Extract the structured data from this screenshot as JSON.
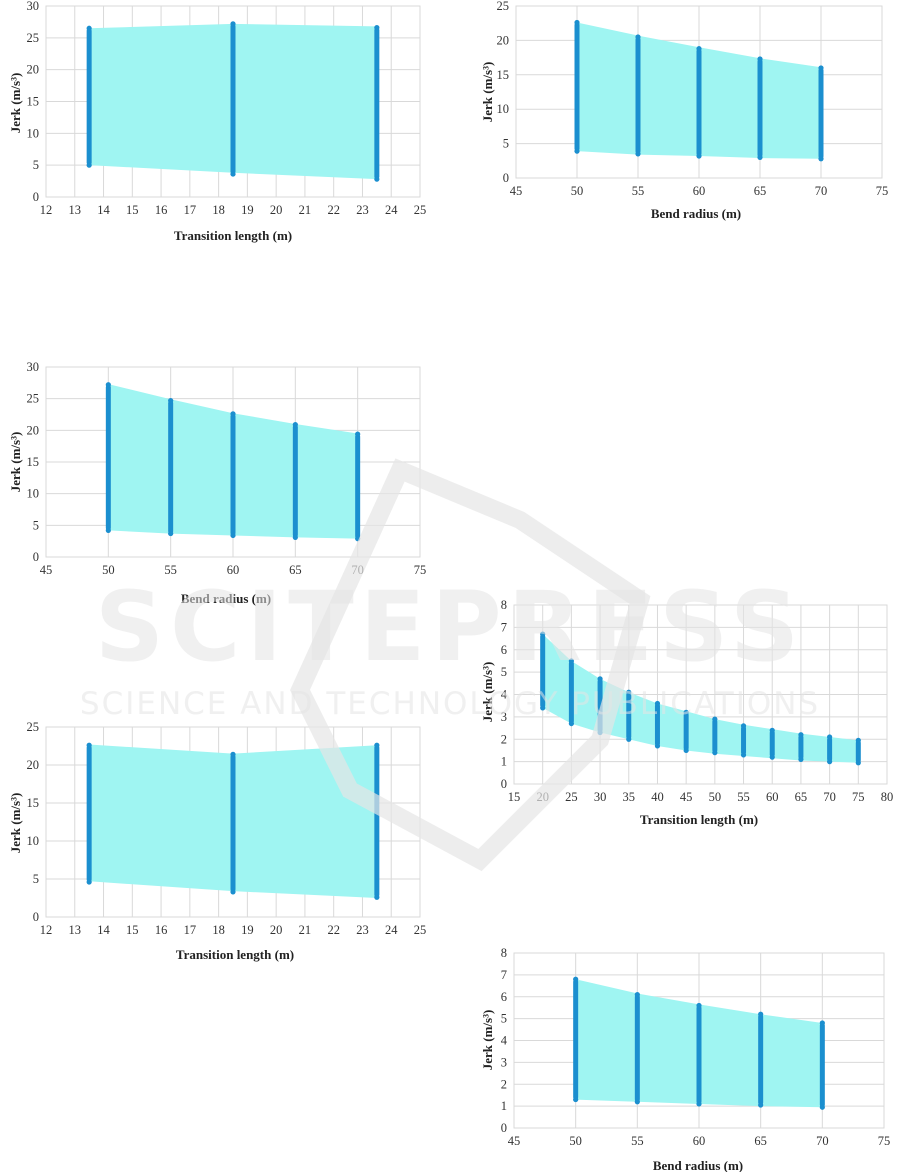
{
  "watermark": {
    "main": "SCITEPRESS",
    "sub": "SCIENCE AND TECHNOLOGY PUBLICATIONS"
  },
  "colors": {
    "band": "#9ff5f2",
    "points": "#1b8fcf",
    "grid": "#d9d9d9"
  },
  "chart_data": [
    {
      "type": "scatter",
      "xlabel": "Transition length (m)",
      "ylabel": "Jerk (m/s³)",
      "xlim": [
        12,
        25
      ],
      "ylim": [
        0,
        30
      ],
      "xticks": [
        12,
        13,
        14,
        15,
        16,
        17,
        18,
        19,
        20,
        21,
        22,
        23,
        24,
        25
      ],
      "yticks": [
        0,
        5,
        10,
        15,
        20,
        25,
        30
      ],
      "x": [
        13.5,
        18.5,
        23.5
      ],
      "y_min": [
        5.0,
        3.6,
        2.8
      ],
      "y_max": [
        26.5,
        27.2,
        26.6
      ],
      "band_top": [
        26.5,
        27.2,
        26.8
      ],
      "band_bottom": [
        5.0,
        3.8,
        2.8
      ],
      "grid": true
    },
    {
      "type": "scatter",
      "xlabel": "Bend radius (m)",
      "ylabel": "Jerk (m/s³)",
      "xlim": [
        45,
        75
      ],
      "ylim": [
        0,
        25
      ],
      "xticks": [
        45,
        50,
        55,
        60,
        65,
        70,
        75
      ],
      "yticks": [
        0,
        5,
        10,
        15,
        20,
        25
      ],
      "x": [
        50,
        55,
        60,
        65,
        70
      ],
      "y_min": [
        3.9,
        3.5,
        3.2,
        3.0,
        2.8
      ],
      "y_max": [
        22.6,
        20.5,
        18.8,
        17.3,
        16.0
      ],
      "band_top": [
        22.6,
        20.7,
        19.0,
        17.4,
        16.1
      ],
      "band_bottom": [
        3.9,
        3.4,
        3.2,
        2.9,
        2.8
      ],
      "grid": true
    },
    {
      "type": "scatter",
      "xlabel": "Bend radius (m)",
      "ylabel": "Jerk (m/s³)",
      "xlim": [
        45,
        75
      ],
      "ylim": [
        0,
        30
      ],
      "xticks": [
        45,
        50,
        55,
        60,
        65,
        70,
        75
      ],
      "yticks": [
        0,
        5,
        10,
        15,
        20,
        25,
        30
      ],
      "x": [
        50,
        55,
        60,
        65,
        70
      ],
      "y_min": [
        4.2,
        3.7,
        3.4,
        3.1,
        2.9
      ],
      "y_max": [
        27.2,
        24.7,
        22.6,
        20.9,
        19.4
      ],
      "band_top": [
        27.3,
        24.9,
        22.7,
        21.0,
        19.5
      ],
      "band_bottom": [
        4.2,
        3.7,
        3.4,
        3.1,
        2.9
      ],
      "grid": true
    },
    {
      "type": "scatter",
      "xlabel": "Transition length (m)",
      "ylabel": "Jerk (m/s³)",
      "xlim": [
        15,
        80
      ],
      "ylim": [
        0,
        8
      ],
      "xticks": [
        15,
        20,
        25,
        30,
        35,
        40,
        45,
        50,
        55,
        60,
        65,
        70,
        75,
        80
      ],
      "yticks": [
        0,
        1,
        2,
        3,
        4,
        5,
        6,
        7,
        8
      ],
      "x": [
        20,
        25,
        30,
        35,
        40,
        45,
        50,
        55,
        60,
        65,
        70,
        75
      ],
      "y_min": [
        3.4,
        2.7,
        2.3,
        2.0,
        1.7,
        1.5,
        1.4,
        1.3,
        1.2,
        1.1,
        1.0,
        0.95
      ],
      "y_max": [
        6.7,
        5.5,
        4.7,
        4.1,
        3.6,
        3.2,
        2.9,
        2.6,
        2.4,
        2.2,
        2.1,
        1.95
      ],
      "band_top": [
        6.7,
        5.5,
        4.7,
        4.1,
        3.6,
        3.25,
        2.9,
        2.65,
        2.45,
        2.25,
        2.1,
        1.95
      ],
      "band_bottom": [
        3.4,
        2.7,
        2.3,
        2.0,
        1.7,
        1.5,
        1.35,
        1.25,
        1.15,
        1.05,
        1.0,
        0.95
      ],
      "grid": true
    },
    {
      "type": "scatter",
      "xlabel": "Transition length (m)",
      "ylabel": "Jerk (m/s³)",
      "xlim": [
        12,
        25
      ],
      "ylim": [
        0,
        25
      ],
      "xticks": [
        12,
        13,
        14,
        15,
        16,
        17,
        18,
        19,
        20,
        21,
        22,
        23,
        24,
        25
      ],
      "yticks": [
        0,
        5,
        10,
        15,
        20,
        25
      ],
      "x": [
        13.5,
        18.5,
        23.5
      ],
      "y_min": [
        4.6,
        3.3,
        2.6
      ],
      "y_max": [
        22.6,
        21.4,
        22.6
      ],
      "band_top": [
        22.7,
        21.5,
        22.6
      ],
      "band_bottom": [
        4.7,
        3.4,
        2.5
      ],
      "grid": true
    },
    {
      "type": "scatter",
      "xlabel": "Bend radius (m)",
      "ylabel": "Jerk (m/s³)",
      "xlim": [
        45,
        75
      ],
      "ylim": [
        0,
        8
      ],
      "xticks": [
        45,
        50,
        55,
        60,
        65,
        70,
        75
      ],
      "yticks": [
        0,
        1,
        2,
        3,
        4,
        5,
        6,
        7,
        8
      ],
      "x": [
        50,
        55,
        60,
        65,
        70
      ],
      "y_min": [
        1.3,
        1.2,
        1.1,
        1.05,
        0.95
      ],
      "y_max": [
        6.8,
        6.1,
        5.6,
        5.2,
        4.8
      ],
      "band_top": [
        6.8,
        6.15,
        5.65,
        5.2,
        4.8
      ],
      "band_bottom": [
        1.3,
        1.2,
        1.1,
        1.0,
        0.95
      ],
      "grid": true
    }
  ]
}
